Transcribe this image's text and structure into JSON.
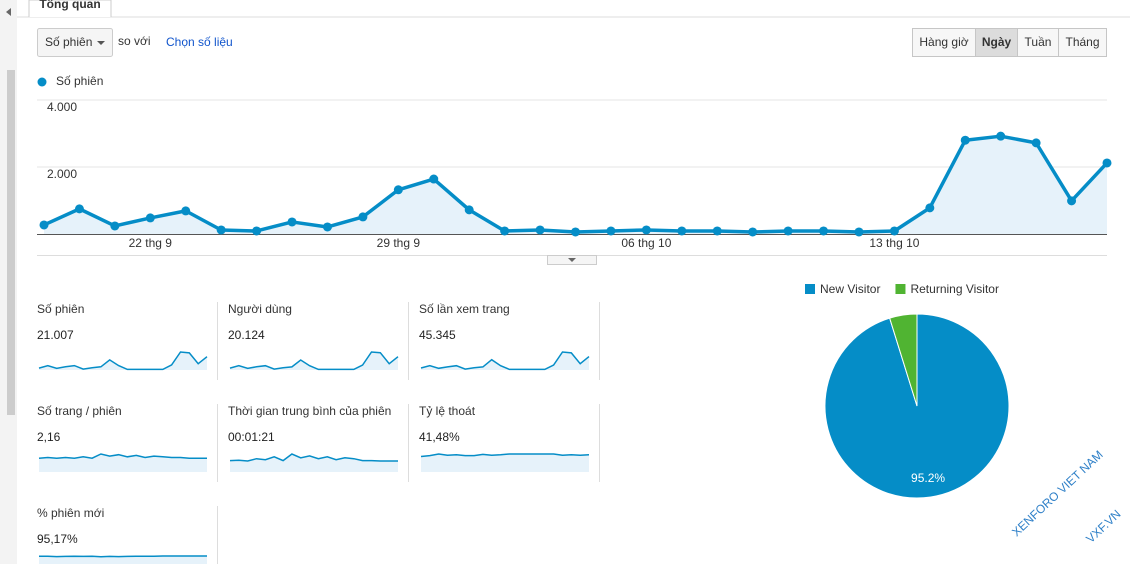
{
  "tab": "Tổng quan",
  "controls": {
    "metric": "Số phiên",
    "compare": "so với",
    "choose": "Chọn số liệu"
  },
  "periods": {
    "buttons": [
      "Hàng giờ",
      "Ngày",
      "Tuần",
      "Tháng"
    ],
    "active": "Ngày"
  },
  "chart_data": [
    {
      "type": "line",
      "categories": [
        null,
        null,
        null,
        "22 thg 9",
        null,
        null,
        null,
        null,
        null,
        null,
        "29 thg 9",
        null,
        null,
        null,
        null,
        null,
        null,
        "06 thg 10",
        null,
        null,
        null,
        null,
        null,
        null,
        "13 thg 10",
        null,
        null,
        null,
        null,
        null,
        null
      ],
      "series": [
        {
          "name": "Số phiên",
          "color": "#058dc7",
          "values": [
            270,
            750,
            240,
            480,
            690,
            120,
            90,
            360,
            210,
            510,
            1320,
            1640,
            720,
            90,
            120,
            60,
            90,
            120,
            90,
            90,
            60,
            90,
            90,
            60,
            90,
            780,
            2800,
            2920,
            2720,
            990,
            2120
          ]
        }
      ],
      "ylim": [
        0,
        4000
      ],
      "yticks": [
        {
          "value": 2000,
          "label": "2.000"
        },
        {
          "value": 4000,
          "label": "4.000"
        }
      ],
      "grid": true
    },
    {
      "type": "pie",
      "categories": [
        "New Visitor",
        "Returning Visitor"
      ],
      "values": [
        95.2,
        4.8
      ],
      "value_labels": [
        "95.2%",
        null
      ],
      "colors": [
        "#058dc7",
        "#50b432"
      ],
      "legend": "top"
    }
  ],
  "metrics": [
    {
      "label": "Số phiên",
      "value": "21.007",
      "trend": [
        300,
        700,
        250,
        500,
        700,
        150,
        350,
        500,
        1600,
        700,
        100,
        100,
        100,
        100,
        100,
        800,
        2850,
        2700,
        1000,
        2100
      ]
    },
    {
      "label": "Người dùng",
      "value": "20.124",
      "trend": [
        280,
        650,
        240,
        480,
        650,
        140,
        330,
        470,
        1500,
        650,
        90,
        90,
        90,
        90,
        90,
        750,
        2700,
        2600,
        950,
        2000
      ]
    },
    {
      "label": "Số lần xem trang",
      "value": "45.345",
      "trend": [
        700,
        1500,
        600,
        1100,
        1500,
        300,
        800,
        1100,
        3600,
        1500,
        200,
        200,
        200,
        200,
        200,
        1700,
        6300,
        6000,
        2200,
        4700
      ]
    },
    {
      "label": "Số trang / phiên",
      "value": "2,16",
      "trend": [
        2.0,
        2.1,
        2.0,
        2.1,
        2.0,
        2.2,
        2.0,
        2.6,
        2.3,
        2.5,
        2.2,
        2.4,
        2.1,
        2.3,
        2.2,
        2.1,
        2.1,
        2.0,
        2.0,
        2.0
      ]
    },
    {
      "label": "Thời gian trung bình của phiên",
      "value": "00:01:21",
      "trend": [
        60,
        62,
        58,
        70,
        65,
        80,
        60,
        95,
        75,
        85,
        70,
        80,
        65,
        75,
        70,
        60,
        60,
        58,
        58,
        58
      ]
    },
    {
      "label": "Tỷ lệ thoát",
      "value": "41,48%",
      "trend": [
        38,
        40,
        44,
        41,
        42,
        40,
        40,
        43,
        41,
        42,
        44,
        44,
        44,
        44,
        44,
        44,
        41,
        42,
        41,
        42
      ]
    },
    {
      "label": "% phiên mới",
      "value": "95,17%",
      "trend": [
        95,
        95,
        93,
        94,
        95,
        94,
        95,
        92,
        94,
        93,
        94,
        95,
        95,
        95,
        96,
        96,
        96,
        96,
        96,
        96
      ]
    }
  ],
  "watermark": [
    "XENFORO VIET NAM",
    "VXF.VN"
  ]
}
